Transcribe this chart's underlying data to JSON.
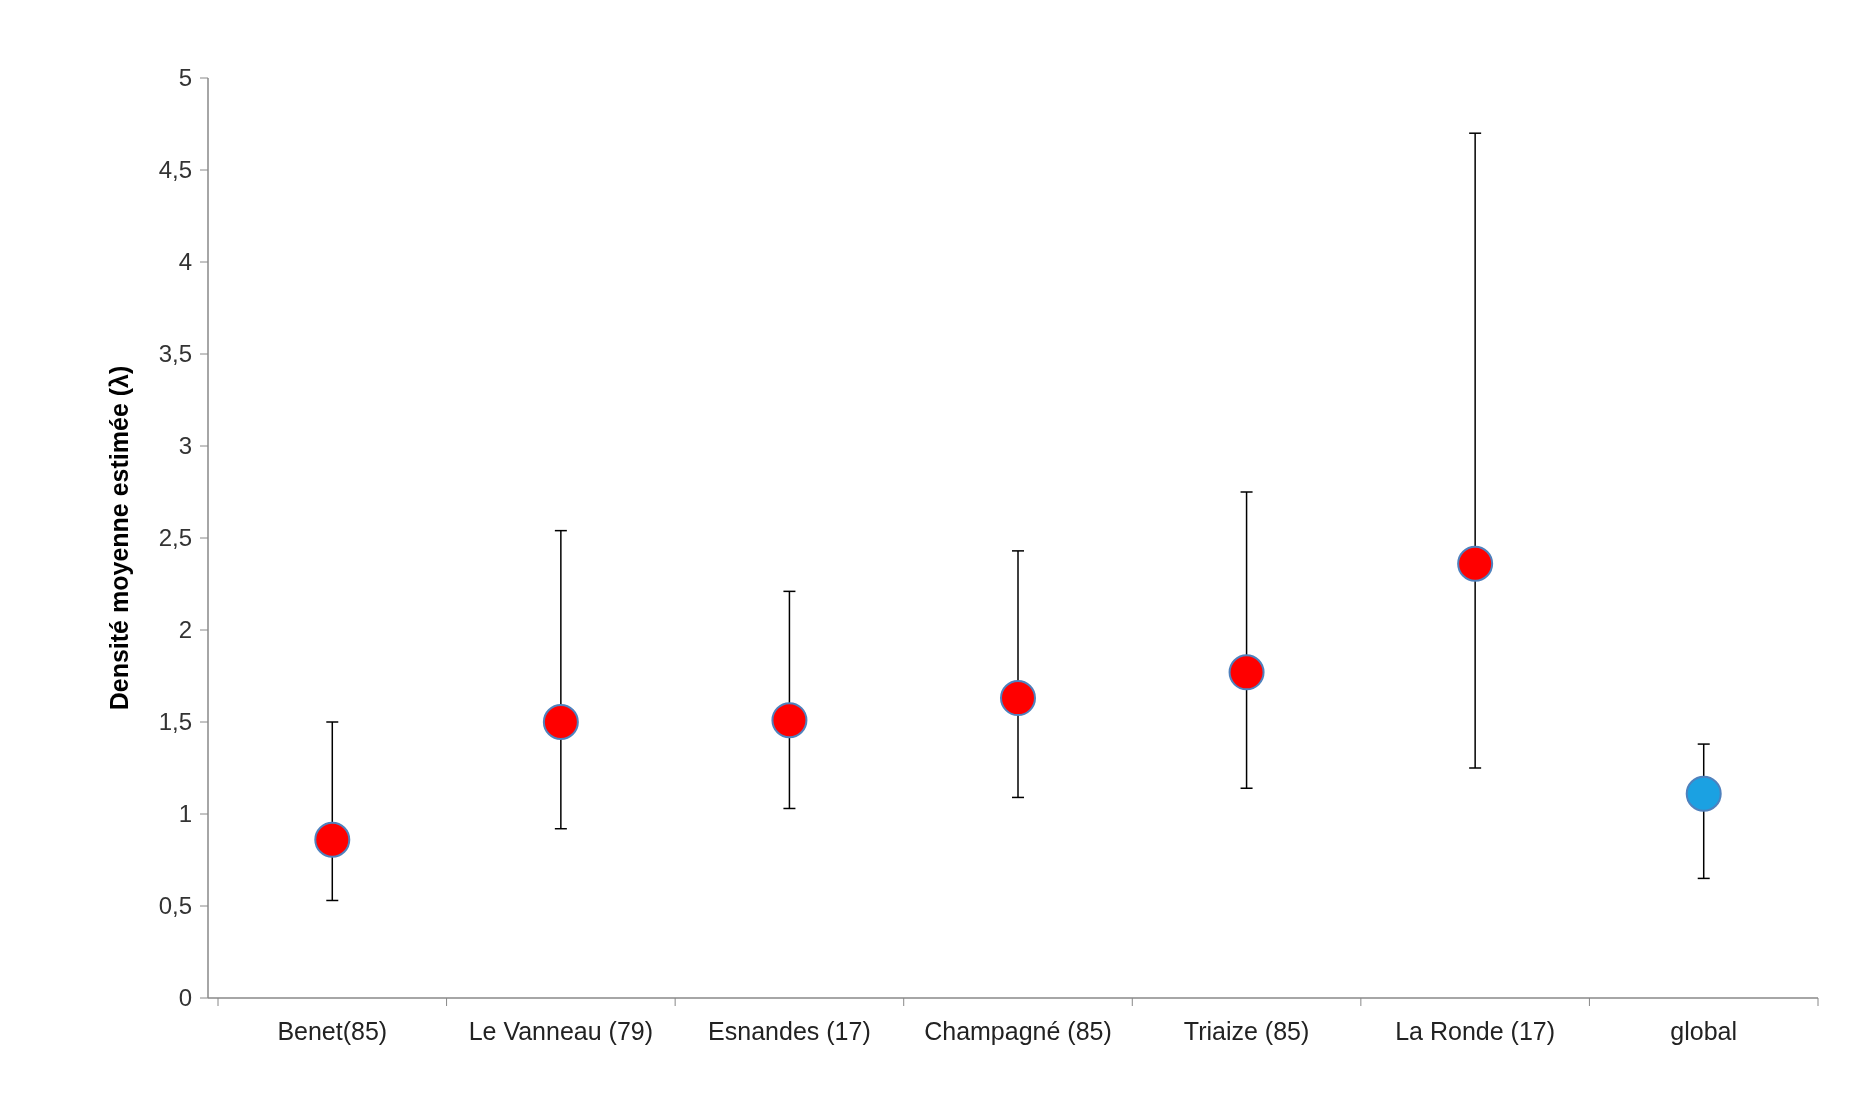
{
  "chart_data": {
    "type": "scatter",
    "ylabel": "Densité moyenne estimée  (λ)",
    "categories": [
      "Benet(85)",
      "Le Vanneau (79)",
      "Esnandes (17)",
      "Champagné (85)",
      "Triaize (85)",
      "La Ronde (17)",
      "global"
    ],
    "values": [
      0.86,
      1.5,
      1.51,
      1.63,
      1.77,
      2.36,
      1.11
    ],
    "colors": [
      "#ff0000",
      "#ff0000",
      "#ff0000",
      "#ff0000",
      "#ff0000",
      "#ff0000",
      "#1ba1e2"
    ],
    "errors": [
      [
        0.53,
        1.5
      ],
      [
        0.92,
        2.54
      ],
      [
        1.03,
        2.21
      ],
      [
        1.09,
        2.43
      ],
      [
        1.14,
        2.75
      ],
      [
        1.25,
        4.7
      ],
      [
        0.65,
        1.38
      ]
    ],
    "ylim": [
      0,
      5
    ],
    "yticks": [
      0,
      {
        "value": 0.5,
        "label": "0,5"
      },
      1,
      {
        "value": 1.5,
        "label": "1,5"
      },
      2,
      {
        "value": 2.5,
        "label": "2,5"
      },
      3,
      {
        "value": 3.5,
        "label": "3,5"
      },
      4,
      {
        "value": 4.5,
        "label": "4,5"
      },
      5
    ],
    "marker": "circle",
    "grid": false
  }
}
